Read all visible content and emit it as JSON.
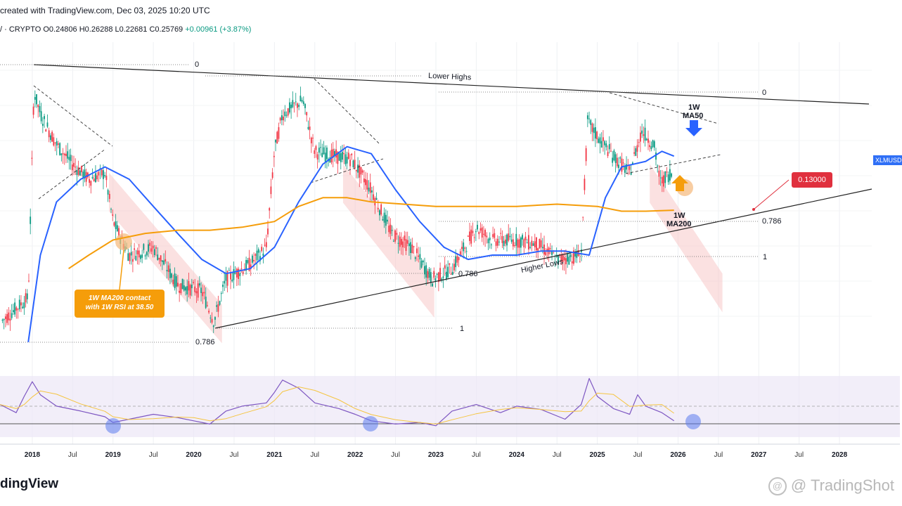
{
  "header": {
    "title": "created with TradingView.com, Dec 03, 2025 10:20 UTC",
    "symbol": "/ · CRYPTO",
    "open": "O0.24806",
    "high": "H0.26288",
    "low": "L0.22681",
    "close": "C0.25769",
    "change": "+0.00961 (+3.87%)"
  },
  "branding": {
    "logo": "dingView",
    "watermark": "@ TradingShot"
  },
  "ticker_tag": "XLMUSD",
  "target_label": "0.13000",
  "callout": {
    "line1": "1W MA200 contact",
    "line2": "with 1W RSI at 38.50"
  },
  "colors": {
    "up": "#089981",
    "down": "#f23645",
    "ma50": "#2962ff",
    "ma200": "#f59d0a",
    "rsi": "#7e57c2",
    "channel": "#f8c8c8",
    "target": "#e0303e"
  },
  "chart_data": {
    "type": "line",
    "title": "XLMUSD 1W",
    "x_axis": {
      "ticks": [
        {
          "label": "2018",
          "t": 2018.0,
          "major": true
        },
        {
          "label": "Jul",
          "t": 2018.5,
          "major": false
        },
        {
          "label": "2019",
          "t": 2019.0,
          "major": true
        },
        {
          "label": "Jul",
          "t": 2019.5,
          "major": false
        },
        {
          "label": "2020",
          "t": 2020.0,
          "major": true
        },
        {
          "label": "Jul",
          "t": 2020.5,
          "major": false
        },
        {
          "label": "2021",
          "t": 2021.0,
          "major": true
        },
        {
          "label": "Jul",
          "t": 2021.5,
          "major": false
        },
        {
          "label": "2022",
          "t": 2022.0,
          "major": true
        },
        {
          "label": "Jul",
          "t": 2022.5,
          "major": false
        },
        {
          "label": "2023",
          "t": 2023.0,
          "major": true
        },
        {
          "label": "Jul",
          "t": 2023.5,
          "major": false
        },
        {
          "label": "2024",
          "t": 2024.0,
          "major": true
        },
        {
          "label": "Jul",
          "t": 2024.5,
          "major": false
        },
        {
          "label": "2025",
          "t": 2025.0,
          "major": true
        },
        {
          "label": "Jul",
          "t": 2025.5,
          "major": false
        },
        {
          "label": "2026",
          "t": 2026.0,
          "major": true
        },
        {
          "label": "Jul",
          "t": 2026.5,
          "major": false
        },
        {
          "label": "2027",
          "t": 2027.0,
          "major": true
        },
        {
          "label": "Jul",
          "t": 2027.5,
          "major": false
        },
        {
          "label": "2028",
          "t": 2028.0,
          "major": true
        }
      ],
      "range": [
        2017.6,
        2028.4
      ]
    },
    "y_axis": {
      "scale": "log",
      "range": [
        0.03,
        1.2
      ]
    },
    "series": [
      {
        "name": "1W MA50",
        "t": [
          2017.95,
          2018.1,
          2018.3,
          2018.6,
          2018.9,
          2019.2,
          2019.5,
          2019.8,
          2020.1,
          2020.4,
          2020.7,
          2021.0,
          2021.3,
          2021.6,
          2021.9,
          2022.2,
          2022.5,
          2022.8,
          2023.1,
          2023.4,
          2023.7,
          2024.0,
          2024.3,
          2024.6,
          2024.9,
          2025.1,
          2025.3,
          2025.6,
          2025.8,
          2025.95
        ],
        "v": [
          0.035,
          0.1,
          0.19,
          0.25,
          0.29,
          0.25,
          0.18,
          0.13,
          0.095,
          0.08,
          0.085,
          0.11,
          0.19,
          0.3,
          0.37,
          0.34,
          0.22,
          0.15,
          0.11,
          0.095,
          0.1,
          0.1,
          0.105,
          0.105,
          0.1,
          0.2,
          0.29,
          0.31,
          0.35,
          0.33
        ]
      },
      {
        "name": "1W MA200",
        "t": [
          2018.45,
          2018.7,
          2019.0,
          2019.4,
          2019.8,
          2020.2,
          2020.6,
          2021.0,
          2021.3,
          2021.6,
          2021.9,
          2022.2,
          2022.6,
          2023.0,
          2023.5,
          2024.0,
          2024.5,
          2025.0,
          2025.3,
          2025.6,
          2025.95
        ],
        "v": [
          0.085,
          0.1,
          0.12,
          0.13,
          0.135,
          0.135,
          0.14,
          0.15,
          0.18,
          0.2,
          0.2,
          0.19,
          0.185,
          0.18,
          0.18,
          0.18,
          0.185,
          0.18,
          0.17,
          0.17,
          0.172
        ]
      },
      {
        "name": "1W RSI",
        "t": [
          2017.6,
          2017.8,
          2017.9,
          2018.0,
          2018.1,
          2018.3,
          2018.6,
          2018.9,
          2019.0,
          2019.2,
          2019.5,
          2019.8,
          2020.0,
          2020.2,
          2020.4,
          2020.6,
          2020.9,
          2021.0,
          2021.1,
          2021.3,
          2021.5,
          2021.8,
          2022.0,
          2022.2,
          2022.5,
          2022.8,
          2023.0,
          2023.2,
          2023.5,
          2023.8,
          2024.0,
          2024.3,
          2024.6,
          2024.8,
          2024.9,
          2025.0,
          2025.2,
          2025.4,
          2025.5,
          2025.6,
          2025.8,
          2025.95
        ],
        "v": [
          60,
          50,
          70,
          88,
          72,
          58,
          52,
          45,
          38,
          42,
          48,
          44,
          40,
          36,
          52,
          58,
          62,
          75,
          90,
          80,
          62,
          55,
          48,
          40,
          36,
          38,
          34,
          52,
          60,
          50,
          58,
          54,
          42,
          60,
          92,
          70,
          55,
          48,
          72,
          58,
          50,
          40
        ]
      }
    ],
    "annotations": {
      "lower_highs": "Lower Highs",
      "higher_lows": "Higher Lows",
      "fib_left_top": "0",
      "fib_left_786": "0.786",
      "fib_left_1": "1",
      "fib_mid_786": "0.786",
      "fib_right_top": "0",
      "fib_right_786": "0.786",
      "fib_right_1": "1",
      "ma50_label_1": "1W",
      "ma50_label_2": "MA50",
      "ma200_label_1": "1W",
      "ma200_label_2": "MA200"
    }
  }
}
